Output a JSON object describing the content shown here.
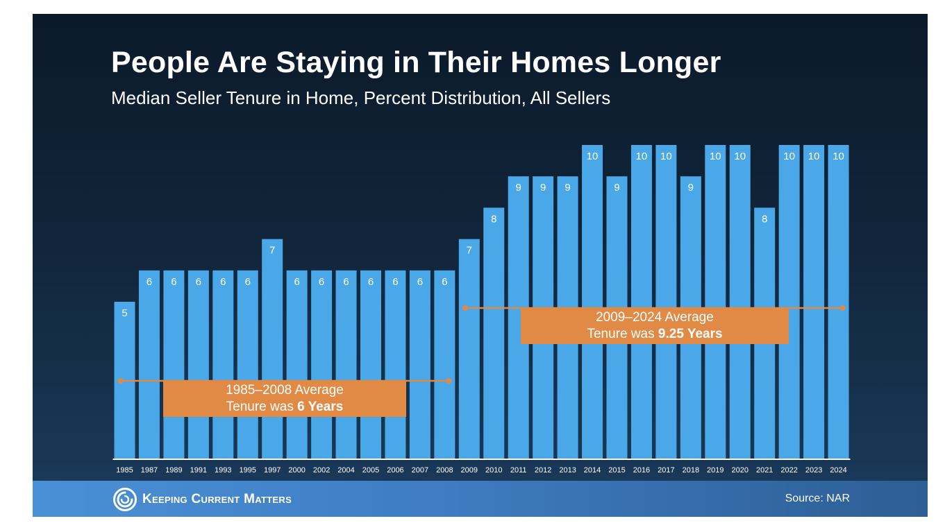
{
  "slide": {
    "title": "People Are Staying in Their Homes Longer",
    "subtitle": "Median Seller Tenure in Home, Percent Distribution, All Sellers"
  },
  "chart_data": {
    "type": "bar",
    "title": "People Are Staying in Their Homes Longer",
    "subtitle": "Median Seller Tenure in Home, Percent Distribution, All Sellers",
    "categories": [
      "1985",
      "1987",
      "1989",
      "1991",
      "1993",
      "1995",
      "1997",
      "2000",
      "2002",
      "2004",
      "2005",
      "2006",
      "2007",
      "2008",
      "2009",
      "2010",
      "2011",
      "2012",
      "2013",
      "2014",
      "2015",
      "2016",
      "2017",
      "2018",
      "2019",
      "2020",
      "2021",
      "2022",
      "2023",
      "2024"
    ],
    "values": [
      5,
      6,
      6,
      6,
      6,
      6,
      7,
      6,
      6,
      6,
      6,
      6,
      6,
      6,
      7,
      8,
      9,
      9,
      9,
      10,
      9,
      10,
      10,
      9,
      10,
      10,
      8,
      10,
      10,
      10
    ],
    "ylim": [
      0,
      10
    ],
    "grid": false,
    "legend": "none",
    "colors": {
      "bar": "#4aa8e8",
      "bar_label": "#ffffff",
      "axis": "#ffffff",
      "average_line": "#e08a45"
    },
    "annotations": [
      {
        "id": "avg-1985-2008",
        "from": "1985",
        "to": "2008",
        "value": 6,
        "line1": "1985–2008 Average",
        "line2_prefix": "Tenure was ",
        "line2_bold": "6 Years"
      },
      {
        "id": "avg-2009-2024",
        "from": "2009",
        "to": "2024",
        "value": 9.25,
        "line1": "2009–2024 Average",
        "line2_prefix": "Tenure was ",
        "line2_bold": "9.25 Years"
      }
    ]
  },
  "footer": {
    "logo_icon": "swirl-logo-icon",
    "brand": "Keeping Current Matters",
    "source": "Source: NAR"
  }
}
